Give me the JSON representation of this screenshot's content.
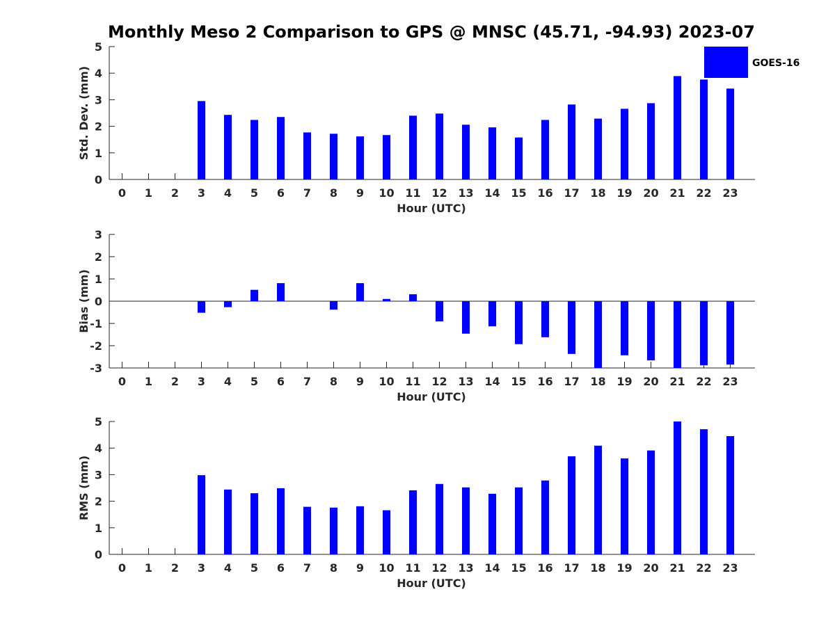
{
  "chart_data": {
    "type": "bar",
    "title": "Monthly Meso 2 Comparison to GPS @ MNSC (45.71, -94.93) 2023-07",
    "color": "#0000ff",
    "legend": {
      "label": "GOES-16",
      "position": "top-right"
    },
    "categories": [
      "0",
      "1",
      "2",
      "3",
      "4",
      "5",
      "6",
      "7",
      "8",
      "9",
      "10",
      "11",
      "12",
      "13",
      "14",
      "15",
      "16",
      "17",
      "18",
      "19",
      "20",
      "21",
      "22",
      "23"
    ],
    "panels": [
      {
        "name": "std-dev",
        "xlabel": "Hour (UTC)",
        "ylabel": "Std. Dev. (mm)",
        "ylim": [
          0,
          5
        ],
        "yticks": [
          "0",
          "1",
          "2",
          "3",
          "4",
          "5"
        ],
        "values": [
          null,
          null,
          null,
          2.95,
          2.43,
          2.24,
          2.35,
          1.77,
          1.72,
          1.62,
          1.67,
          2.4,
          2.48,
          2.06,
          1.96,
          1.58,
          2.24,
          2.82,
          2.29,
          2.66,
          2.87,
          3.89,
          3.76,
          3.42
        ]
      },
      {
        "name": "bias",
        "xlabel": "Hour (UTC)",
        "ylabel": "Bias (mm)",
        "ylim": [
          -3,
          3
        ],
        "yticks": [
          "-3",
          "-2",
          "-1",
          "0",
          "1",
          "2",
          "3"
        ],
        "values": [
          null,
          null,
          null,
          -0.52,
          -0.27,
          0.51,
          0.81,
          null,
          -0.38,
          0.81,
          0.1,
          0.31,
          -0.91,
          -1.46,
          -1.13,
          -1.93,
          -1.62,
          -2.37,
          -3.0,
          -2.43,
          -2.66,
          -3.0,
          -2.88,
          -2.85
        ]
      },
      {
        "name": "rms",
        "xlabel": "Hour (UTC)",
        "ylabel": "RMS (mm)",
        "ylim": [
          0,
          5
        ],
        "yticks": [
          "0",
          "1",
          "2",
          "3",
          "4",
          "5"
        ],
        "values": [
          null,
          null,
          null,
          2.98,
          2.44,
          2.3,
          2.49,
          1.79,
          1.76,
          1.81,
          1.66,
          2.41,
          2.65,
          2.52,
          2.28,
          2.52,
          2.78,
          3.69,
          4.09,
          3.61,
          3.91,
          5.0,
          4.71,
          4.45
        ]
      }
    ]
  }
}
